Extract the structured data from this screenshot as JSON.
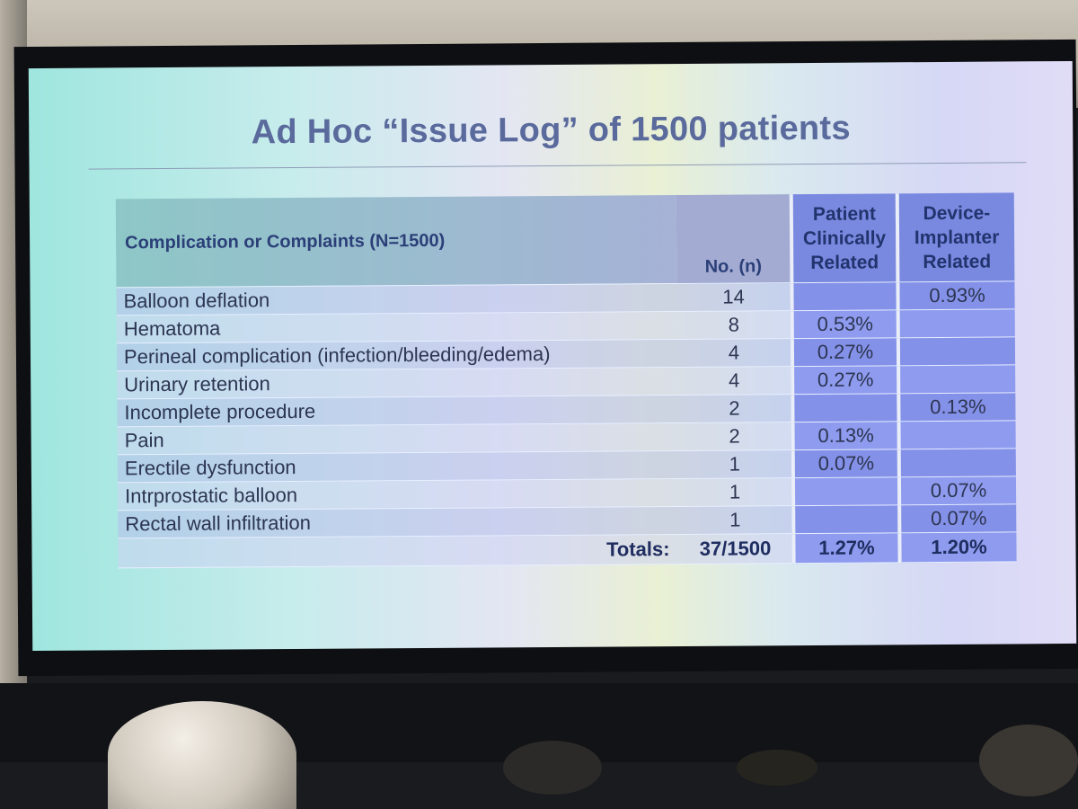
{
  "slide": {
    "title": "Ad Hoc “Issue Log” of 1500 patients",
    "table": {
      "headers": {
        "complication": "Complication or Complaints (N=1500)",
        "count": "No. (n)",
        "patient_line1": "Patient",
        "patient_line2": "Clinically",
        "patient_line3": "Related",
        "device_line1": "Device-",
        "device_line2": "Implanter",
        "device_line3": "Related"
      },
      "rows": [
        {
          "complication": "Balloon deflation",
          "count": "14",
          "patient": "",
          "device": "0.93%"
        },
        {
          "complication": "Hematoma",
          "count": "8",
          "patient": "0.53%",
          "device": ""
        },
        {
          "complication": "Perineal complication (infection/bleeding/edema)",
          "count": "4",
          "patient": "0.27%",
          "device": ""
        },
        {
          "complication": "Urinary retention",
          "count": "4",
          "patient": "0.27%",
          "device": ""
        },
        {
          "complication": "Incomplete procedure",
          "count": "2",
          "patient": "",
          "device": "0.13%"
        },
        {
          "complication": "Pain",
          "count": "2",
          "patient": "0.13%",
          "device": ""
        },
        {
          "complication": "Erectile dysfunction",
          "count": "1",
          "patient": "0.07%",
          "device": ""
        },
        {
          "complication": "Intrprostatic balloon",
          "count": "1",
          "patient": "",
          "device": "0.07%"
        },
        {
          "complication": "Rectal wall infiltration",
          "count": "1",
          "patient": "",
          "device": "0.07%"
        }
      ],
      "totals": {
        "label": "Totals:",
        "count": "37/1500",
        "patient": "1.27%",
        "device": "1.20%"
      }
    }
  }
}
